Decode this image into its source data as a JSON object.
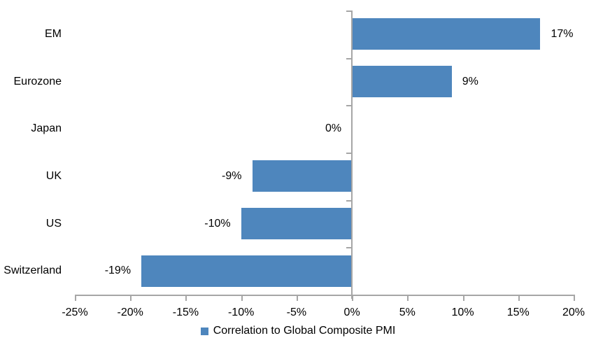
{
  "chart_data": {
    "type": "bar",
    "orientation": "horizontal",
    "title": "",
    "categories": [
      "EM",
      "Eurozone",
      "Japan",
      "UK",
      "US",
      "Switzerland"
    ],
    "series": [
      {
        "name": "Correlation to Global Composite PMI",
        "values": [
          17,
          9,
          0,
          -9,
          -10,
          -19
        ],
        "labels": [
          "17%",
          "9%",
          "0%",
          "-9%",
          "-10%",
          "-19%"
        ]
      }
    ],
    "xlabel": "",
    "ylabel": "",
    "xlim": [
      -25,
      20
    ],
    "x_tick_step": 5,
    "x_tick_labels": [
      "-25%",
      "-20%",
      "-15%",
      "-10%",
      "-5%",
      "0%",
      "5%",
      "10%",
      "15%",
      "20%"
    ],
    "grid": false,
    "legend_position": "bottom",
    "colors": {
      "bar": "#4E86BD",
      "axis": "#A6A6A6",
      "text": "#000000",
      "background": "#FFFFFF"
    }
  },
  "legend": {
    "label": "Correlation to Global Composite PMI"
  }
}
